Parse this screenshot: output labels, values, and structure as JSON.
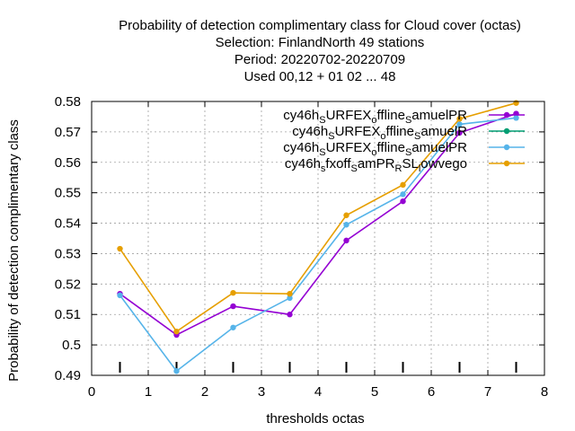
{
  "chart_data": {
    "type": "line",
    "title_lines": [
      "Probability of detection complimentary class  for Cloud cover (octas)",
      "Selection: FinlandNorth     49 stations",
      "Period: 20220702-20220709",
      "Used  00,12  + 01 02 ... 48"
    ],
    "xlabel": "thresholds octas",
    "ylabel": "Probability of detection complimentary class",
    "xlim": [
      0,
      8
    ],
    "ylim": [
      0.49,
      0.58
    ],
    "xticks": [
      0,
      1,
      2,
      3,
      4,
      5,
      6,
      7,
      8
    ],
    "yticks": [
      0.49,
      0.5,
      0.51,
      0.52,
      0.53,
      0.54,
      0.55,
      0.56,
      0.57,
      0.58
    ],
    "xtick_labels": [
      "0",
      "1",
      "2",
      "3",
      "4",
      "5",
      "6",
      "7",
      "8"
    ],
    "ytick_labels": [
      "0.49",
      "0.5",
      "0.51",
      "0.52",
      "0.53",
      "0.54",
      "0.55",
      "0.56",
      "0.57",
      "0.58"
    ],
    "grid": true,
    "legend_position": "top-right",
    "series": [
      {
        "legend": [
          {
            "t": "cy46h",
            "s": "n"
          },
          {
            "t": "S",
            "s": "sub"
          },
          {
            "t": "URFEX",
            "s": "n"
          },
          {
            "t": "o",
            "s": "sub"
          },
          {
            "t": "ffline",
            "s": "n"
          },
          {
            "t": "S",
            "s": "sub"
          },
          {
            "t": "amuelPR",
            "s": "n"
          }
        ],
        "color": "#9400d3",
        "x": [
          0.5,
          1.5,
          2.5,
          3.5,
          4.5,
          5.5,
          6.5,
          7.5
        ],
        "y": [
          0.5168,
          0.5033,
          0.5127,
          0.51,
          0.5343,
          0.5472,
          0.5697,
          0.576
        ]
      },
      {
        "legend": [
          {
            "t": "cy46h",
            "s": "n"
          },
          {
            "t": "S",
            "s": "sub"
          },
          {
            "t": "URFEX",
            "s": "n"
          },
          {
            "t": "o",
            "s": "sub"
          },
          {
            "t": "ffline",
            "s": "n"
          },
          {
            "t": "S",
            "s": "sub"
          },
          {
            "t": "amuelR",
            "s": "n"
          }
        ],
        "color": "#009e73",
        "x": [],
        "y": []
      },
      {
        "legend": [
          {
            "t": "cy46h",
            "s": "n"
          },
          {
            "t": "S",
            "s": "sub"
          },
          {
            "t": "URFEX",
            "s": "n"
          },
          {
            "t": "o",
            "s": "sub"
          },
          {
            "t": "ffline",
            "s": "n"
          },
          {
            "t": "S",
            "s": "sub"
          },
          {
            "t": "amuelPR",
            "s": "n"
          }
        ],
        "color": "#56b4e9",
        "x": [
          0.5,
          1.5,
          2.5,
          3.5,
          4.5,
          5.5,
          6.5,
          7.5
        ],
        "y": [
          0.5163,
          0.4914,
          0.5057,
          0.5154,
          0.5395,
          0.5495,
          0.5725,
          0.5746
        ]
      },
      {
        "legend": [
          {
            "t": "cy46h",
            "s": "n"
          },
          {
            "t": "s",
            "s": "sub"
          },
          {
            "t": "fxoff",
            "s": "n"
          },
          {
            "t": "S",
            "s": "sub"
          },
          {
            "t": "amPR",
            "s": "n"
          },
          {
            "t": "R",
            "s": "sub"
          },
          {
            "t": "SL",
            "s": "n"
          },
          {
            "t": "l",
            "s": "sub"
          },
          {
            "t": "owvego",
            "s": "n"
          }
        ],
        "color": "#e69f00",
        "x": [
          0.5,
          1.5,
          2.5,
          3.5,
          4.5,
          5.5,
          6.5,
          7.5
        ],
        "y": [
          0.5316,
          0.5044,
          0.5171,
          0.5168,
          0.5426,
          0.5526,
          0.5743,
          0.5795
        ]
      }
    ],
    "threshold_marks": [
      0.5,
      1.5,
      2.5,
      3.5,
      4.5,
      5.5,
      6.5,
      7.5
    ]
  }
}
